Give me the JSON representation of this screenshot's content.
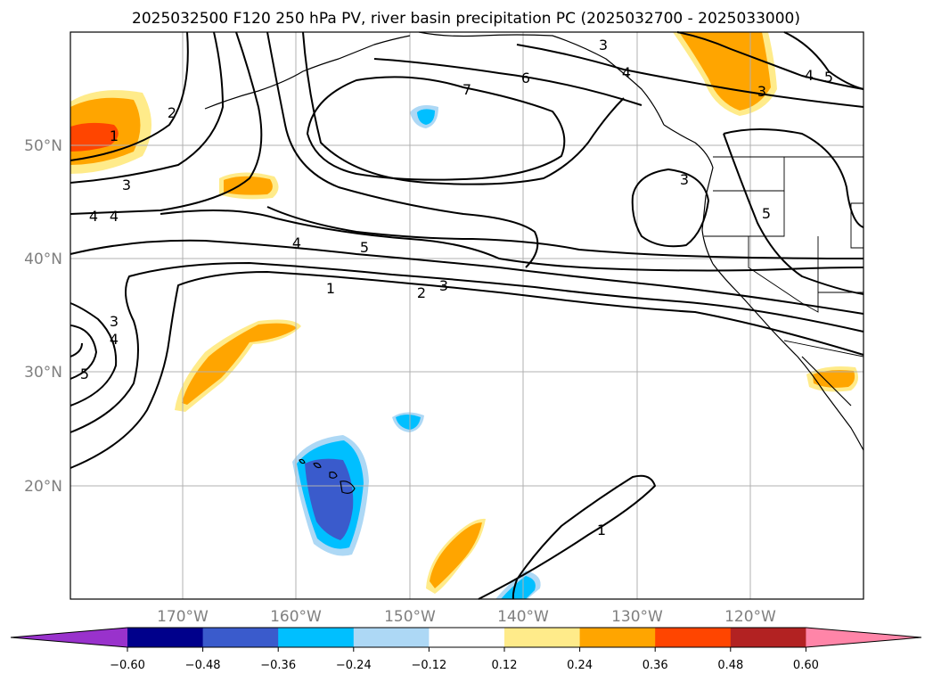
{
  "title": "2025032500 F120 250 hPa PV, river basin precipitation PC (2025032700 - 2025033000)",
  "lat_labels": [
    "50°N",
    "40°N",
    "30°N",
    "20°N"
  ],
  "lon_labels": [
    "170°W",
    "160°W",
    "150°W",
    "140°W",
    "130°W",
    "120°W"
  ],
  "contour_labels": [
    "1",
    "2",
    "4",
    "3",
    "4",
    "3",
    "4",
    "5",
    "4",
    "6",
    "7",
    "3",
    "4",
    "5",
    "3",
    "5",
    "1",
    "2",
    "3",
    "3",
    "4",
    "5",
    "1"
  ],
  "colorbar": {
    "ticks": [
      "−0.60",
      "−0.48",
      "−0.36",
      "−0.24",
      "−0.12",
      "0.12",
      "0.24",
      "0.36",
      "0.48",
      "0.60"
    ],
    "colors": [
      "#9932cc",
      "#00008b",
      "#3a5bcc",
      "#00bfff",
      "#add8f5",
      "#ffffff",
      "#ffeb8a",
      "#ffa500",
      "#ff4500",
      "#b22222",
      "#ff85a8"
    ]
  },
  "colors": {
    "light_yellow": "#ffeb8a",
    "orange": "#ffa500",
    "orange_red": "#ff4500",
    "light_blue": "#add8f5",
    "deep_sky_blue": "#00bfff",
    "royal_blue": "#3a5bcc"
  }
}
